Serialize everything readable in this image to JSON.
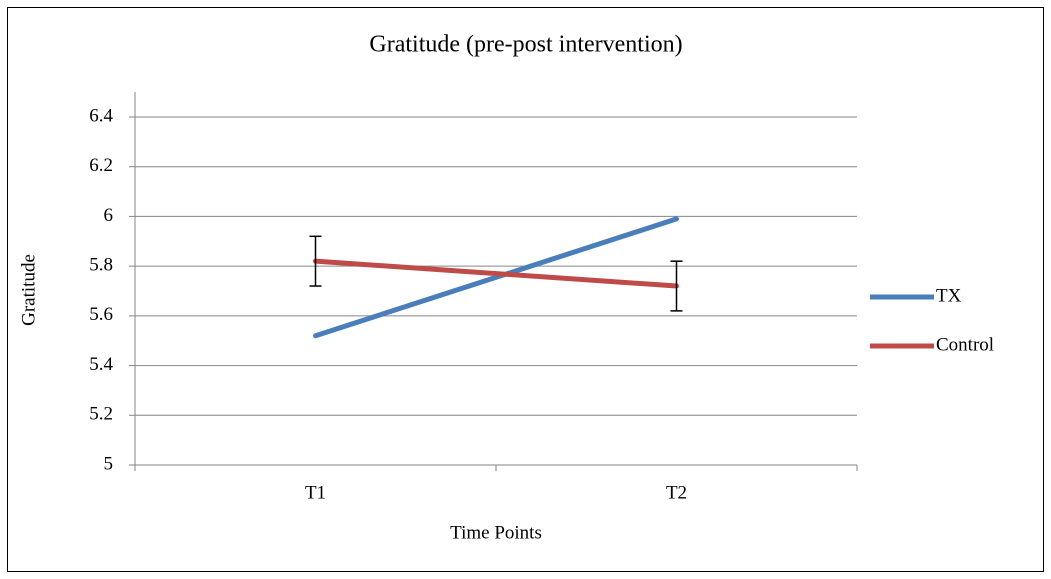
{
  "chart_data": {
    "type": "line",
    "title": "Gratitude (pre-post intervention)",
    "x_label": "Time Points",
    "y_label": "Gratitude",
    "categories": [
      "T1",
      "T2"
    ],
    "series": [
      {
        "name": "TX",
        "color": "#4a7ebb",
        "values": [
          5.52,
          5.99
        ]
      },
      {
        "name": "Control",
        "color": "#be4b48",
        "values": [
          5.82,
          5.72
        ],
        "errors": [
          0.1,
          0.1
        ]
      }
    ],
    "ylim": [
      5,
      6.4
    ],
    "yticks": [
      5,
      5.2,
      5.4,
      5.6,
      5.8,
      6,
      6.2,
      6.4
    ],
    "grid": true,
    "legend": "right"
  }
}
